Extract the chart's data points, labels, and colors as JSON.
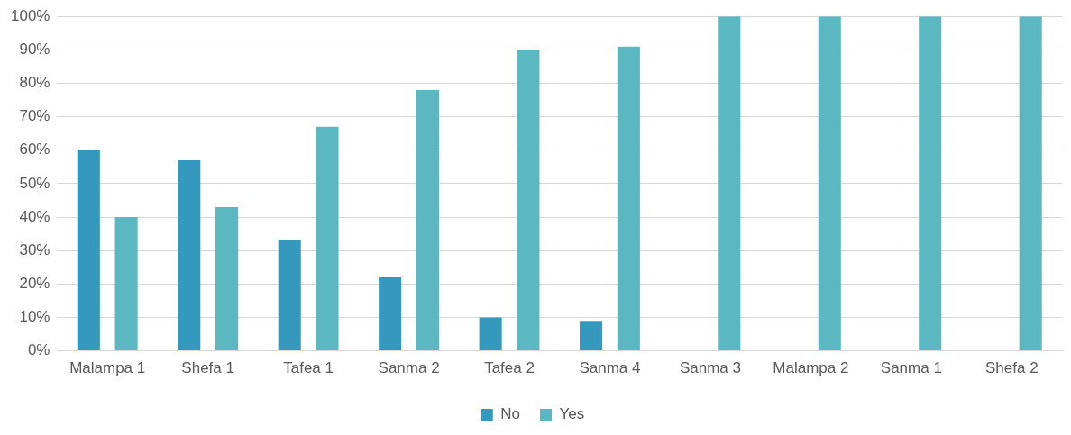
{
  "chart_data": {
    "type": "bar",
    "categories": [
      "Malampa 1",
      "Shefa 1",
      "Tafea 1",
      "Sanma 2",
      "Tafea 2",
      "Sanma 4",
      "Sanma 3",
      "Malampa 2",
      "Sanma 1",
      "Shefa 2"
    ],
    "series": [
      {
        "name": "No",
        "color": "#3598bd",
        "values": [
          60,
          57,
          33,
          22,
          10,
          9,
          0,
          0,
          0,
          0
        ]
      },
      {
        "name": "Yes",
        "color": "#5bb7c0",
        "values": [
          40,
          43,
          67,
          78,
          90,
          91,
          100,
          100,
          100,
          100
        ]
      }
    ],
    "ylim": [
      0,
      100
    ],
    "yticks": [
      {
        "value": 0,
        "label": "0%"
      },
      {
        "value": 10,
        "label": "10%"
      },
      {
        "value": 20,
        "label": "20%"
      },
      {
        "value": 30,
        "label": "30%"
      },
      {
        "value": 40,
        "label": "40%"
      },
      {
        "value": 50,
        "label": "50%"
      },
      {
        "value": 60,
        "label": "60%"
      },
      {
        "value": 70,
        "label": "70%"
      },
      {
        "value": 80,
        "label": "80%"
      },
      {
        "value": 90,
        "label": "90%"
      },
      {
        "value": 100,
        "label": "100%"
      }
    ],
    "grid": "y",
    "legend": "bottom"
  }
}
